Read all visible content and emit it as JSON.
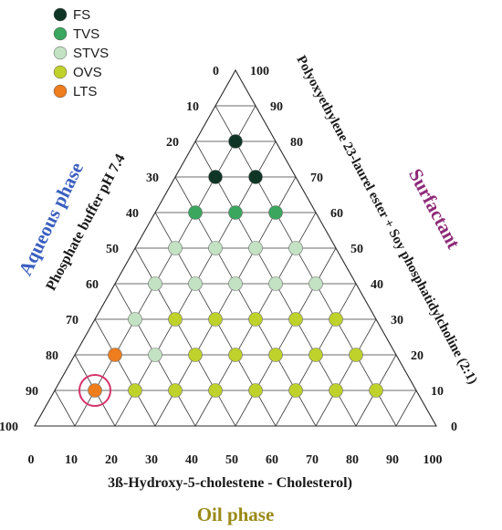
{
  "chart_data": {
    "type": "scatter",
    "subtype": "ternary",
    "axes": {
      "bottom": {
        "label": "3ß-Hydroxy-5-cholestene - Cholesterol)",
        "ticks": [
          "0",
          "10",
          "20",
          "30",
          "40",
          "50",
          "60",
          "70",
          "80",
          "90",
          "100"
        ]
      },
      "left": {
        "label": "Phosphate buffer pH 7.4",
        "ticks": [
          "0",
          "10",
          "20",
          "30",
          "40",
          "50",
          "60",
          "70",
          "80",
          "90",
          "100"
        ]
      },
      "right": {
        "label": "Polyoxyethylene 23-laurel ester + Soy phosphatidylcholine (2:1)",
        "ticks": [
          "0",
          "10",
          "20",
          "30",
          "40",
          "50",
          "60",
          "70",
          "80",
          "90",
          "100"
        ]
      }
    },
    "group_titles": {
      "left": "Aqueous phase",
      "right": "Surfactant",
      "bottom": "Oil phase"
    },
    "group_title_colors": {
      "left": "#3b5fc0",
      "right": "#8e2a78",
      "bottom": "#9a8a17"
    },
    "legend": {
      "placement": "top-left",
      "entries": [
        {
          "name": "FS",
          "color": "#0f3527"
        },
        {
          "name": "TVS",
          "color": "#3aa65e"
        },
        {
          "name": "STVS",
          "color": "#c3e2c3"
        },
        {
          "name": "OVS",
          "color": "#bfd12b"
        },
        {
          "name": "LTS",
          "color": "#ee7d1d"
        }
      ]
    },
    "grid": true,
    "series": [
      {
        "name": "FS",
        "color": "#0f3527",
        "points": [
          {
            "oil": 10,
            "aqueous": 10
          },
          {
            "oil": 10,
            "aqueous": 20
          },
          {
            "oil": 20,
            "aqueous": 10
          }
        ]
      },
      {
        "name": "TVS",
        "color": "#3aa65e",
        "points": [
          {
            "oil": 10,
            "aqueous": 30
          },
          {
            "oil": 20,
            "aqueous": 20
          },
          {
            "oil": 30,
            "aqueous": 10
          }
        ]
      },
      {
        "name": "STVS",
        "color": "#c3e2c3",
        "points": [
          {
            "oil": 10,
            "aqueous": 40
          },
          {
            "oil": 20,
            "aqueous": 30
          },
          {
            "oil": 30,
            "aqueous": 20
          },
          {
            "oil": 40,
            "aqueous": 10
          },
          {
            "oil": 10,
            "aqueous": 50
          },
          {
            "oil": 20,
            "aqueous": 40
          },
          {
            "oil": 30,
            "aqueous": 30
          },
          {
            "oil": 40,
            "aqueous": 20
          },
          {
            "oil": 50,
            "aqueous": 10
          },
          {
            "oil": 10,
            "aqueous": 60
          },
          {
            "oil": 20,
            "aqueous": 60
          }
        ]
      },
      {
        "name": "OVS",
        "color": "#bfd12b",
        "points": [
          {
            "oil": 20,
            "aqueous": 50
          },
          {
            "oil": 30,
            "aqueous": 40
          },
          {
            "oil": 40,
            "aqueous": 30
          },
          {
            "oil": 50,
            "aqueous": 20
          },
          {
            "oil": 60,
            "aqueous": 10
          },
          {
            "oil": 30,
            "aqueous": 50
          },
          {
            "oil": 40,
            "aqueous": 40
          },
          {
            "oil": 50,
            "aqueous": 30
          },
          {
            "oil": 60,
            "aqueous": 20
          },
          {
            "oil": 70,
            "aqueous": 10
          },
          {
            "oil": 20,
            "aqueous": 70
          },
          {
            "oil": 30,
            "aqueous": 60
          },
          {
            "oil": 40,
            "aqueous": 50
          },
          {
            "oil": 50,
            "aqueous": 40
          },
          {
            "oil": 60,
            "aqueous": 30
          },
          {
            "oil": 70,
            "aqueous": 20
          },
          {
            "oil": 80,
            "aqueous": 10
          }
        ]
      },
      {
        "name": "LTS",
        "color": "#ee7d1d",
        "points": [
          {
            "oil": 10,
            "aqueous": 70
          },
          {
            "oil": 10,
            "aqueous": 80
          }
        ]
      }
    ],
    "highlight": {
      "oil": 10,
      "aqueous": 80,
      "ring_color": "#d6336c"
    }
  }
}
